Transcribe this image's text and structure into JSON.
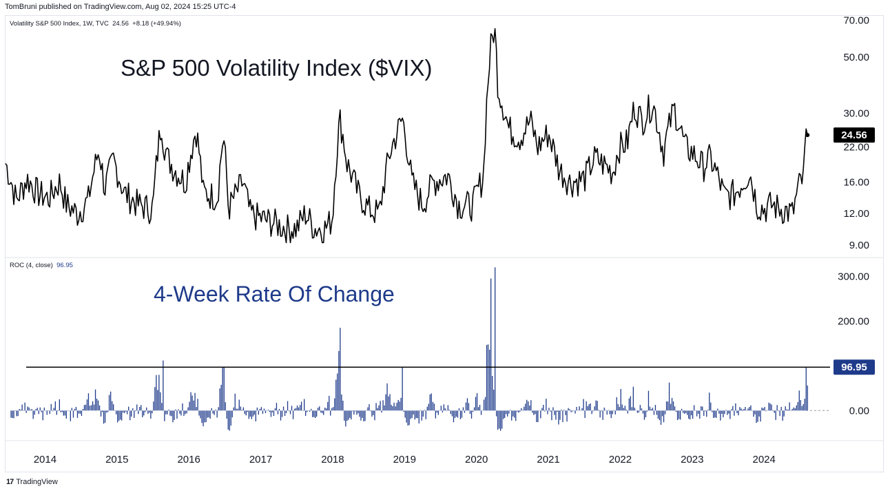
{
  "header": {
    "published": "TomBruni published on TradingView.com, Aug 02, 2024 15:25 UTC-4"
  },
  "colors": {
    "vix_line": "#000000",
    "roc_bars": "#1e3a8a",
    "roc_badge": "#1e3a8a",
    "vix_badge": "#000000",
    "grid_border": "#e0e3eb"
  },
  "footer": {
    "logo_mark": "17",
    "logo_text": "TradingView"
  },
  "chart_data": [
    {
      "type": "line",
      "legend": {
        "label": "Volatility S&P 500 Index, 1W, TVC",
        "value": "24.56",
        "change": "+8.18 (+49.94%)"
      },
      "title": "S&P 500 Volatility Index ($VIX)",
      "scale": "log",
      "y_ticks": [
        "70.00",
        "50.00",
        "30.00",
        "22.00",
        "16.00",
        "12.00",
        "9.00"
      ],
      "ylim": [
        8.5,
        72
      ],
      "last_value_label": "24.56",
      "x_range": [
        2013.45,
        2024.64
      ],
      "x_ticks": [
        "2014",
        "2015",
        "2016",
        "2017",
        "2018",
        "2019",
        "2020",
        "2021",
        "2022",
        "2023",
        "2024"
      ],
      "series": {
        "name": "VIX",
        "x": [
          2013.45,
          2013.6,
          2013.75,
          2013.9,
          2014.05,
          2014.2,
          2014.3,
          2014.45,
          2014.6,
          2014.75,
          2014.83,
          2014.95,
          2015.1,
          2015.3,
          2015.5,
          2015.62,
          2015.64,
          2015.7,
          2015.8,
          2015.95,
          2016.05,
          2016.1,
          2016.2,
          2016.4,
          2016.48,
          2016.55,
          2016.75,
          2016.85,
          2017.0,
          2017.2,
          2017.35,
          2017.5,
          2017.62,
          2017.75,
          2017.9,
          2018.0,
          2018.1,
          2018.2,
          2018.35,
          2018.5,
          2018.65,
          2018.8,
          2018.97,
          2019.1,
          2019.25,
          2019.4,
          2019.6,
          2019.75,
          2019.95,
          2020.1,
          2020.2,
          2020.25,
          2020.3,
          2020.45,
          2020.6,
          2020.75,
          2020.85,
          2021.0,
          2021.15,
          2021.3,
          2021.5,
          2021.65,
          2021.9,
          2021.98,
          2022.1,
          2022.2,
          2022.3,
          2022.45,
          2022.6,
          2022.75,
          2022.9,
          2023.0,
          2023.15,
          2023.25,
          2023.45,
          2023.6,
          2023.8,
          2023.9,
          2024.0,
          2024.1,
          2024.25,
          2024.4,
          2024.5,
          2024.55,
          2024.58,
          2024.62
        ],
        "values": [
          19.0,
          13.5,
          16.5,
          14.5,
          13.8,
          16.0,
          13.0,
          12.0,
          13.5,
          21.5,
          15.0,
          19.5,
          14.5,
          13.0,
          12.5,
          28.0,
          24.0,
          20.0,
          18.0,
          16.0,
          22.5,
          26.0,
          14.5,
          14.0,
          24.5,
          12.5,
          16.0,
          12.0,
          11.5,
          11.0,
          10.5,
          10.5,
          12.0,
          10.5,
          10.5,
          11.5,
          28.5,
          19.0,
          14.5,
          12.5,
          12.0,
          21.0,
          28.5,
          16.0,
          13.0,
          16.0,
          17.0,
          13.0,
          13.0,
          17.0,
          55.0,
          66.0,
          38.0,
          26.0,
          24.0,
          28.0,
          22.0,
          25.0,
          18.0,
          16.0,
          16.5,
          20.0,
          17.5,
          22.0,
          23.0,
          32.0,
          28.0,
          33.0,
          21.0,
          31.5,
          22.0,
          21.0,
          18.5,
          20.0,
          14.0,
          14.5,
          17.5,
          13.0,
          12.5,
          13.0,
          12.5,
          12.0,
          16.0,
          16.4,
          24.56,
          24.56
        ]
      }
    },
    {
      "type": "bar",
      "legend": {
        "label": "ROC (4, close)",
        "value": "96.95"
      },
      "title": "4-Week Rate Of Change",
      "y_ticks": [
        "300.00",
        "200.00",
        "0.00"
      ],
      "ylim": [
        -55,
        325
      ],
      "reference_line": 96.95,
      "last_value_label": "96.95",
      "x_range": [
        2013.45,
        2024.64
      ],
      "highlights": [
        {
          "x": 2015.64,
          "value": 112
        },
        {
          "x": 2016.48,
          "value": 98
        },
        {
          "x": 2018.1,
          "value": 185
        },
        {
          "x": 2018.97,
          "value": 98
        },
        {
          "x": 2020.2,
          "value": 295
        },
        {
          "x": 2020.25,
          "value": 320
        },
        {
          "x": 2024.58,
          "value": 96.95
        }
      ]
    }
  ]
}
